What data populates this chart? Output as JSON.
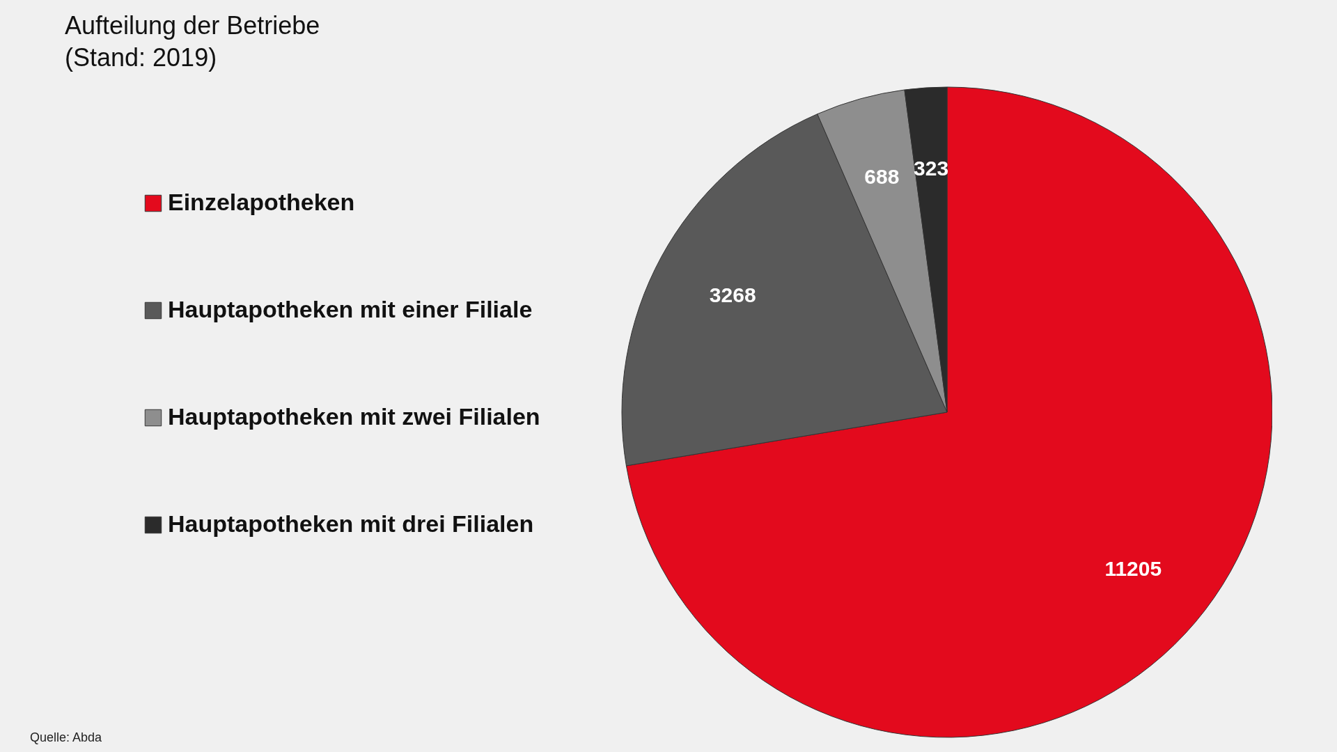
{
  "chart_data": {
    "type": "pie",
    "title": "Aufteilung der Betriebe",
    "subtitle": "(Stand: 2019)",
    "categories": [
      "Einzelapotheken",
      "Hauptapotheken mit einer Filiale",
      "Hauptapotheken mit zwei Filialen",
      "Hauptapotheken mit drei Filialen"
    ],
    "values": [
      11205,
      3268,
      688,
      323
    ],
    "colors": [
      "#e30a1d",
      "#595959",
      "#8e8e8e",
      "#2b2b2b"
    ],
    "data_labels": true,
    "legend": "left",
    "annotations": [
      "Quelle: Abda"
    ]
  }
}
